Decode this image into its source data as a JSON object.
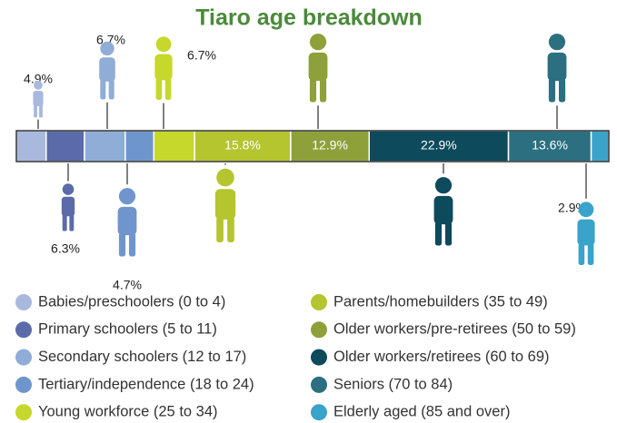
{
  "chart_data": {
    "type": "stacked_bar",
    "title": "Tiaro age breakdown",
    "series": [
      {
        "name": "Babies/preschoolers (0 to 4)",
        "color": "#a9b9dd",
        "values": [
          4.9
        ],
        "value_labels": [
          "4.9%"
        ]
      },
      {
        "name": "Primary schoolers (5 to 11)",
        "color": "#5b6aa8",
        "values": [
          6.3
        ],
        "value_labels": [
          "6.3%"
        ]
      },
      {
        "name": "Secondary schoolers (12 to 17)",
        "color": "#8fadd6",
        "values": [
          6.7
        ],
        "value_labels": [
          "6.7%"
        ]
      },
      {
        "name": "Tertiary/independence (18 to 24)",
        "color": "#6f96cc",
        "values": [
          4.7
        ],
        "value_labels": [
          "4.7%"
        ]
      },
      {
        "name": "Young workforce (25 to 34)",
        "color": "#c5d82b",
        "values": [
          6.7
        ],
        "value_labels": [
          "6.7%"
        ]
      },
      {
        "name": "Parents/homebuilders (35 to 49)",
        "color": "#b5c52f",
        "values": [
          15.8
        ],
        "value_labels": [
          "15.8%"
        ]
      },
      {
        "name": "Older workers/pre-retirees (50 to 59)",
        "color": "#8ea03a",
        "values": [
          12.9
        ],
        "value_labels": [
          "12.9%"
        ]
      },
      {
        "name": "Older workers/retirees (60 to 69)",
        "color": "#0d4a5c",
        "values": [
          22.9
        ],
        "value_labels": [
          "22.9%"
        ]
      },
      {
        "name": "Seniors (70 to 84)",
        "color": "#2b6f80",
        "values": [
          13.6
        ],
        "value_labels": [
          "13.6%"
        ]
      },
      {
        "name": "Elderly aged (85 and over)",
        "color": "#3aa3c9",
        "values": [
          2.9
        ],
        "value_labels": [
          "2.9%"
        ]
      }
    ]
  }
}
